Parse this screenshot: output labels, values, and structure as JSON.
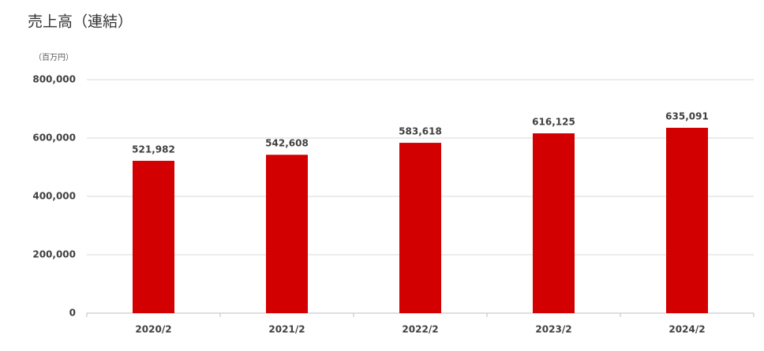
{
  "chart_data": {
    "type": "bar",
    "title": "売上高（連結）",
    "ylabel": "（百万円）",
    "categories": [
      "2020/2",
      "2021/2",
      "2022/2",
      "2023/2",
      "2024/2"
    ],
    "values": [
      521982,
      542608,
      583618,
      616125,
      635091
    ],
    "value_labels": [
      "521,982",
      "542,608",
      "583,618",
      "616,125",
      "635,091"
    ],
    "color": "#d20000",
    "ylim": [
      0,
      800000
    ],
    "yticks": [
      0,
      {
        "value": 200000,
        "label": "200,000"
      },
      {
        "value": 400000,
        "label": "400,000"
      },
      {
        "value": 600000,
        "label": "600,000"
      },
      {
        "value": 800000,
        "label": "800,000"
      }
    ],
    "grid": true
  }
}
